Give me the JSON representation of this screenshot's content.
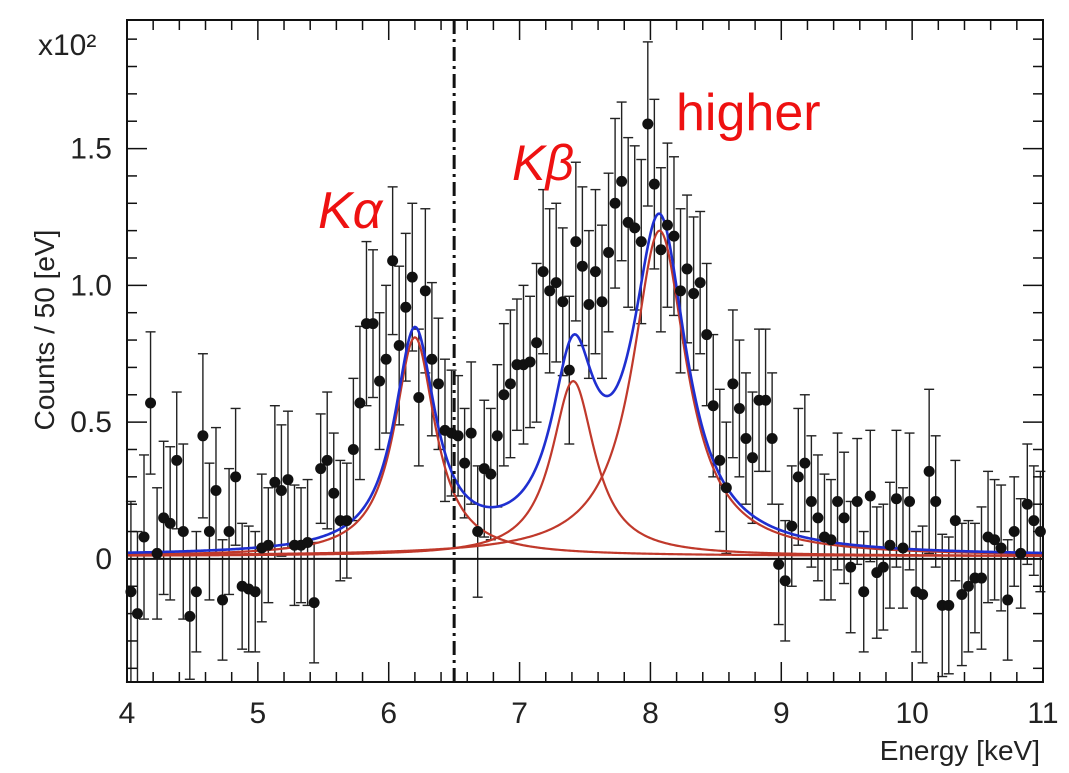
{
  "chart_data": {
    "type": "scatter",
    "xlabel": "Energy [keV]",
    "ylabel": "Counts / 50 [eV]",
    "y_multiplier": "x10²",
    "xlim": [
      4,
      11
    ],
    "ylim": [
      -0.45,
      1.97
    ],
    "x_ticks": [
      "4",
      "5",
      "6",
      "7",
      "8",
      "9",
      "10",
      "11"
    ],
    "y_ticks": [
      "0",
      "0.5",
      "1.0",
      "1.5"
    ],
    "grid": false,
    "annotations": [
      "Kα",
      "Kβ",
      "higher"
    ],
    "vertical_line_x": 6.5,
    "colors": {
      "data": "#111111",
      "total_fit": "#1f2fd0",
      "component_fit": "#c0392b",
      "annotation": "#ee1111"
    },
    "components": [
      {
        "center": 6.2,
        "amplitude": 0.8,
        "gamma": 0.19
      },
      {
        "center": 7.41,
        "amplitude": 0.64,
        "gamma": 0.2
      },
      {
        "center": 8.07,
        "amplitude": 1.19,
        "gamma": 0.25
      }
    ],
    "baseline": 0.01,
    "x": [
      4.03,
      4.08,
      4.13,
      4.18,
      4.23,
      4.28,
      4.33,
      4.38,
      4.43,
      4.48,
      4.53,
      4.58,
      4.63,
      4.68,
      4.73,
      4.78,
      4.83,
      4.88,
      4.93,
      4.98,
      5.03,
      5.08,
      5.13,
      5.18,
      5.23,
      5.28,
      5.33,
      5.38,
      5.43,
      5.48,
      5.53,
      5.58,
      5.63,
      5.68,
      5.73,
      5.78,
      5.83,
      5.88,
      5.93,
      5.98,
      6.03,
      6.08,
      6.13,
      6.18,
      6.23,
      6.28,
      6.33,
      6.38,
      6.43,
      6.48,
      6.53,
      6.58,
      6.63,
      6.68,
      6.73,
      6.78,
      6.83,
      6.88,
      6.93,
      6.98,
      7.03,
      7.08,
      7.13,
      7.18,
      7.23,
      7.28,
      7.33,
      7.38,
      7.43,
      7.48,
      7.53,
      7.58,
      7.63,
      7.68,
      7.73,
      7.78,
      7.83,
      7.88,
      7.93,
      7.98,
      8.03,
      8.08,
      8.13,
      8.18,
      8.23,
      8.28,
      8.33,
      8.38,
      8.43,
      8.48,
      8.53,
      8.58,
      8.63,
      8.68,
      8.73,
      8.78,
      8.83,
      8.88,
      8.93,
      8.98,
      9.03,
      9.08,
      9.13,
      9.18,
      9.23,
      9.28,
      9.33,
      9.38,
      9.43,
      9.48,
      9.53,
      9.58,
      9.63,
      9.68,
      9.73,
      9.78,
      9.83,
      9.88,
      9.93,
      9.98,
      10.03,
      10.08,
      10.13,
      10.18,
      10.23,
      10.28,
      10.33,
      10.38,
      10.43,
      10.48,
      10.53,
      10.58,
      10.63,
      10.68,
      10.73,
      10.78,
      10.83,
      10.88,
      10.93,
      10.98
    ],
    "y": [
      -0.12,
      -0.2,
      0.08,
      0.57,
      0.02,
      0.15,
      0.13,
      0.36,
      0.1,
      -0.21,
      -0.12,
      0.45,
      0.1,
      0.25,
      -0.15,
      0.1,
      0.3,
      -0.1,
      -0.11,
      -0.12,
      0.04,
      0.05,
      0.28,
      0.25,
      0.29,
      0.05,
      0.05,
      0.06,
      -0.16,
      0.33,
      0.36,
      0.24,
      0.14,
      0.14,
      0.4,
      0.57,
      0.86,
      0.86,
      0.65,
      0.73,
      1.09,
      0.78,
      0.92,
      1.03,
      0.59,
      0.98,
      0.73,
      0.64,
      0.47,
      0.46,
      0.45,
      0.35,
      0.46,
      0.1,
      0.33,
      0.31,
      0.45,
      0.6,
      0.64,
      0.71,
      0.71,
      0.72,
      0.79,
      1.05,
      0.98,
      1.01,
      0.94,
      0.69,
      1.16,
      1.07,
      0.93,
      1.05,
      0.94,
      1.12,
      1.3,
      1.38,
      1.23,
      1.21,
      1.16,
      1.59,
      1.37,
      1.13,
      1.22,
      1.18,
      0.98,
      1.06,
      0.97,
      1.01,
      0.82,
      0.56,
      0.36,
      0.26,
      0.64,
      0.55,
      0.44,
      0.37,
      0.58,
      0.58,
      0.44,
      -0.02,
      -0.08,
      0.12,
      0.3,
      0.35,
      0.21,
      0.15,
      0.08,
      0.07,
      0.21,
      0.15,
      -0.03,
      0.21,
      -0.12,
      0.23,
      -0.05,
      -0.03,
      0.05,
      0.22,
      0.04,
      0.21,
      -0.12,
      -0.13,
      0.32,
      0.21,
      -0.17,
      -0.17,
      0.14,
      -0.13,
      -0.1,
      -0.07,
      -0.07,
      0.08,
      0.07,
      0.04,
      -0.15,
      0.1,
      0.02,
      0.2,
      0.14,
      0.1
    ],
    "yerr": [
      0.33,
      0.3,
      0.3,
      0.26,
      0.24,
      0.28,
      0.28,
      0.25,
      0.32,
      0.23,
      0.22,
      0.3,
      0.25,
      0.23,
      0.22,
      0.23,
      0.25,
      0.23,
      0.23,
      0.22,
      0.27,
      0.21,
      0.28,
      0.24,
      0.25,
      0.22,
      0.21,
      0.23,
      0.22,
      0.2,
      0.25,
      0.22,
      0.22,
      0.21,
      0.26,
      0.28,
      0.3,
      0.27,
      0.25,
      0.27,
      0.27,
      0.29,
      0.27,
      0.27,
      0.25,
      0.3,
      0.28,
      0.24,
      0.26,
      0.23,
      0.22,
      0.2,
      0.26,
      0.24,
      0.25,
      0.24,
      0.26,
      0.26,
      0.27,
      0.24,
      0.29,
      0.24,
      0.29,
      0.3,
      0.3,
      0.29,
      0.27,
      0.27,
      0.29,
      0.29,
      0.27,
      0.3,
      0.28,
      0.29,
      0.31,
      0.29,
      0.31,
      0.3,
      0.3,
      0.3,
      0.31,
      0.3,
      0.3,
      0.29,
      0.3,
      0.27,
      0.28,
      0.26,
      0.26,
      0.26,
      0.26,
      0.24,
      0.27,
      0.25,
      0.24,
      0.24,
      0.26,
      0.26,
      0.24,
      0.22,
      0.22,
      0.22,
      0.25,
      0.25,
      0.24,
      0.23,
      0.23,
      0.22,
      0.25,
      0.24,
      0.24,
      0.23,
      0.22,
      0.24,
      0.24,
      0.23,
      0.23,
      0.25,
      0.22,
      0.25,
      0.22,
      0.25,
      0.3,
      0.24,
      0.26,
      0.25,
      0.22,
      0.26,
      0.24,
      0.2,
      0.26,
      0.24,
      0.22,
      0.23,
      0.22,
      0.2,
      0.2,
      0.22,
      0.2,
      0.22
    ]
  }
}
